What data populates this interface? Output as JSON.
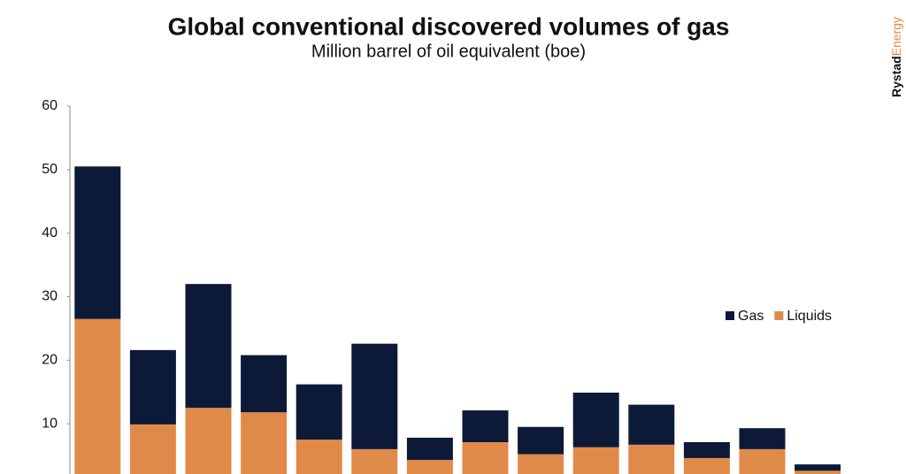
{
  "chart_data": {
    "type": "bar",
    "stacked": true,
    "title": "Global conventional discovered volumes of gas",
    "subtitle": "Million barrel of oil equivalent (boe)",
    "logo": [
      "Rystad",
      "Energy"
    ],
    "categories": [
      null,
      null,
      null,
      null,
      null,
      null,
      null,
      null,
      null,
      null,
      null,
      null,
      null,
      null
    ],
    "series": [
      {
        "name": "Gas",
        "color": "#0c1a38",
        "values": [
          24.0,
          11.7,
          19.5,
          9.0,
          8.7,
          16.6,
          3.5,
          5.0,
          4.3,
          8.6,
          6.3,
          2.5,
          3.3,
          1.0
        ]
      },
      {
        "name": "Liquids",
        "color": "#e08a4a",
        "values": [
          26.5,
          9.9,
          12.5,
          11.8,
          7.5,
          6.0,
          4.3,
          7.1,
          5.2,
          6.3,
          6.7,
          4.6,
          6.0,
          2.6
        ]
      }
    ],
    "ylim": [
      0,
      60
    ],
    "yticks": [
      10,
      20,
      30,
      40,
      50,
      60
    ],
    "grid": false,
    "legend": "right"
  }
}
